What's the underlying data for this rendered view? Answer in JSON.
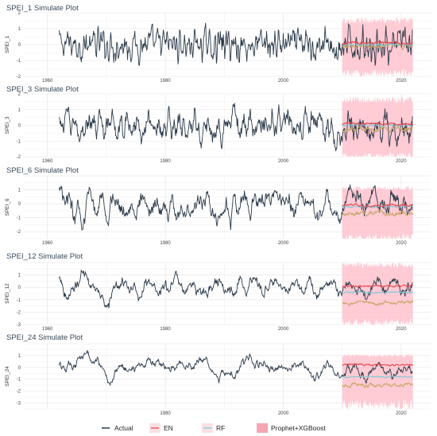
{
  "chart_data": [
    {
      "type": "line",
      "title": "SPEI_1 Simulate Plot",
      "ylabel": "SPEI_1",
      "xlim": [
        1956,
        2025
      ],
      "ylim": [
        -2,
        2
      ],
      "yticks": [
        -2,
        -1,
        0,
        1,
        2
      ],
      "xticks": [
        1960,
        1980,
        2000,
        2020
      ],
      "grid": true,
      "actual": {
        "start": 1962,
        "end": 2022,
        "mean": 0,
        "amplitude": 0.55
      },
      "forecast": {
        "start": 2010,
        "end": 2022,
        "band": [
          -1.8,
          1.5
        ],
        "en_level": 0.1,
        "rf_level": 0.0,
        "pxg_level": -0.05
      }
    },
    {
      "type": "line",
      "title": "SPEI_3 Simulate Plot",
      "ylabel": "SPEI_3",
      "xlim": [
        1956,
        2025
      ],
      "ylim": [
        -2,
        2
      ],
      "yticks": [
        -2,
        -1,
        0,
        1,
        2
      ],
      "xticks": [
        1960,
        1980,
        2000,
        2020
      ],
      "grid": true,
      "actual": {
        "start": 1962,
        "end": 2022,
        "mean": 0,
        "amplitude": 0.6
      },
      "forecast": {
        "start": 2010,
        "end": 2022,
        "band": [
          -2.0,
          1.6
        ],
        "en_level": 0.1,
        "rf_level": 0.0,
        "pxg_level": -0.25
      }
    },
    {
      "type": "line",
      "title": "SPEI_6 Simulate Plot",
      "ylabel": "SPEI_6",
      "xlim": [
        1956,
        2025
      ],
      "ylim": [
        -2.5,
        2
      ],
      "yticks": [
        -2,
        -1,
        0,
        1
      ],
      "xticks": [
        1960,
        1980,
        2000,
        2020
      ],
      "grid": true,
      "actual": {
        "start": 1962,
        "end": 2022,
        "mean": 0,
        "amplitude": 0.65
      },
      "forecast": {
        "start": 2010,
        "end": 2022,
        "band": [
          -2.5,
          1.1
        ],
        "en_level": -0.1,
        "rf_level": -0.2,
        "pxg_level": -0.7
      }
    },
    {
      "type": "line",
      "title": "SPEI_12 Simulate Plot",
      "ylabel": "SPEI_12",
      "xlim": [
        1956,
        2025
      ],
      "ylim": [
        -3,
        2
      ],
      "yticks": [
        -3,
        -2,
        -1,
        0,
        1
      ],
      "xticks": [
        1960,
        1980,
        2000,
        2020
      ],
      "grid": true,
      "actual": {
        "start": 1962,
        "end": 2022,
        "mean": 0,
        "amplitude": 0.6
      },
      "forecast": {
        "start": 2010,
        "end": 2022,
        "band": [
          -2.9,
          1.8
        ],
        "en_level": 0.1,
        "rf_level": -0.4,
        "pxg_level": -1.2
      }
    },
    {
      "type": "line",
      "title": "SPEI_24 Simulate Plot",
      "ylabel": "SPEI_24",
      "xlim": [
        1956,
        2025
      ],
      "ylim": [
        -3.5,
        2
      ],
      "yticks": [
        -3,
        -2,
        -1,
        0,
        1
      ],
      "xticks": [
        1980,
        2000,
        2020
      ],
      "grid": true,
      "actual": {
        "start": 1962,
        "end": 2022,
        "mean": 0,
        "amplitude": 0.55
      },
      "forecast": {
        "start": 2010,
        "end": 2022,
        "band": [
          -3.1,
          1.0
        ],
        "en_level": 0.2,
        "rf_level": -0.8,
        "pxg_level": -1.5
      }
    }
  ],
  "legend": {
    "placement": "bottom",
    "entries": [
      {
        "label": "Actual",
        "color": "#2b3a4a"
      },
      {
        "label": "EN",
        "color": "#e8474f"
      },
      {
        "label": "RF",
        "color": "#7ec7d6"
      },
      {
        "label": "Prophet+XGBoost",
        "color": "#f4a7b2"
      }
    ]
  },
  "colors": {
    "actual": "#2b3a4a",
    "en": "#e8474f",
    "rf": "#7ec7d6",
    "pxg": "#c9a66b",
    "band": "#ffc2cc",
    "grid": "#e6e6e6"
  }
}
